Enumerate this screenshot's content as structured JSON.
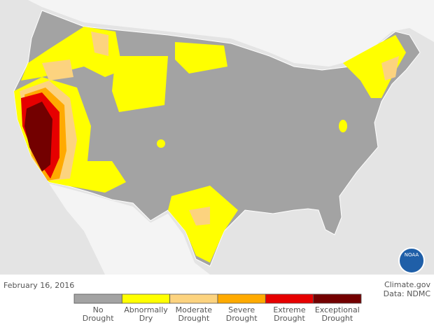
{
  "date": "February 16, 2016",
  "credit": {
    "source": "Climate.gov",
    "data": "Data: NDMC"
  },
  "logo": "NOAA",
  "legend": [
    {
      "label": [
        "No",
        "Drought"
      ],
      "color": "#a3a3a3"
    },
    {
      "label": [
        "Abnormally",
        "Dry"
      ],
      "color": "#ffff00"
    },
    {
      "label": [
        "Moderate",
        "Drought"
      ],
      "color": "#fcd37f"
    },
    {
      "label": [
        "Severe",
        "Drought"
      ],
      "color": "#ffaa00"
    },
    {
      "label": [
        "Extreme",
        "Drought"
      ],
      "color": "#e60000"
    },
    {
      "label": [
        "Exceptional",
        "Drought"
      ],
      "color": "#730000"
    }
  ]
}
